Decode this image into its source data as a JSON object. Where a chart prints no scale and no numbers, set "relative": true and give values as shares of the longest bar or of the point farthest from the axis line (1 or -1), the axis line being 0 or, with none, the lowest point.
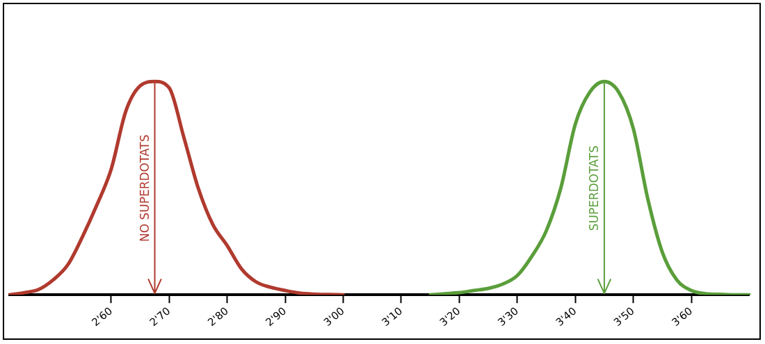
{
  "chart_data": {
    "type": "line",
    "relative": true,
    "grid": false,
    "legend": false,
    "marker": "none",
    "line_style": "solid",
    "tick_labels": "x",
    "categories": [
      null,
      null,
      null,
      null,
      null,
      null,
      null,
      "2'60",
      null,
      null,
      null,
      "2'70",
      null,
      null,
      null,
      "2'80",
      null,
      null,
      null,
      "2'90",
      null,
      null,
      null,
      "3'00",
      null,
      null,
      null,
      "3'10",
      null,
      null,
      null,
      "3'20",
      null,
      null,
      null,
      "3'30",
      null,
      null,
      null,
      "3'40",
      null,
      null,
      null,
      "3'50",
      null,
      null,
      null,
      "3'60",
      null,
      null,
      null,
      null
    ],
    "series": [
      {
        "color": "#b03a2e",
        "values": [
          0,
          0.01,
          0.025,
          0.07,
          0.14,
          0.27,
          0.42,
          0.59,
          0.86,
          0.98,
          1,
          0.97,
          0.74,
          0.5,
          0.33,
          0.23,
          0.12,
          0.06,
          0.035,
          0.02,
          0.008,
          0.003,
          0.001,
          0,
          null,
          null,
          null,
          null,
          null,
          null,
          null,
          null,
          null,
          null,
          null,
          null,
          null,
          null,
          null,
          null,
          null,
          null,
          null,
          null,
          null,
          null,
          null,
          null,
          null,
          null,
          null,
          null
        ]
      },
      {
        "color": "#5a9e3a",
        "values": [
          null,
          null,
          null,
          null,
          null,
          null,
          null,
          null,
          null,
          null,
          null,
          null,
          null,
          null,
          null,
          null,
          null,
          null,
          null,
          null,
          null,
          null,
          null,
          null,
          null,
          null,
          null,
          null,
          null,
          0,
          0.005,
          0.01,
          0.02,
          0.03,
          0.05,
          0.09,
          0.18,
          0.3,
          0.5,
          0.8,
          0.95,
          1,
          0.95,
          0.78,
          0.45,
          0.2,
          0.07,
          0.02,
          0.005,
          0.002,
          0,
          0
        ]
      }
    ],
    "annotations": [
      "NO SUPERDOTATS",
      "SUPERDOTATS"
    ]
  }
}
